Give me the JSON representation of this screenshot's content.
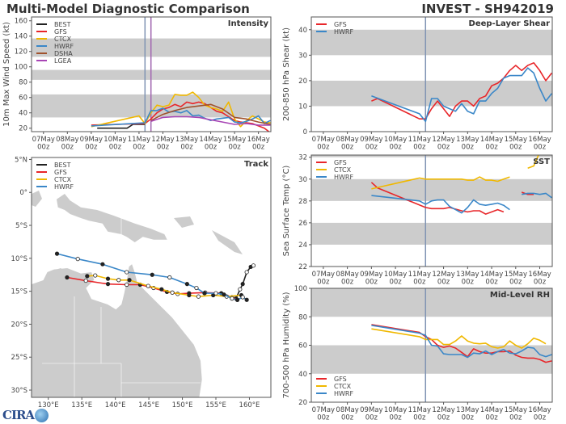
{
  "header": {
    "title": "Multi-Model Diagnostic Comparison",
    "storm_id": "INVEST - SH942019"
  },
  "logo": {
    "text": "CIRA"
  },
  "colors": {
    "BEST": "#222222",
    "GFS": "#e8262a",
    "CTCX": "#f0b800",
    "HWRF": "#3a87c8",
    "DSHA": "#a0522d",
    "LGEA": "#a845b5",
    "band": "#cccccc",
    "init_line": "#7f93b3",
    "lgea_line": "#a266b0"
  },
  "chart_data": [
    {
      "panel": "intensity",
      "type": "line",
      "title": "Intensity",
      "ylabel": "10m Max Wind Speed (kt)",
      "xlabel": "",
      "xlim": [
        6.5,
        16.52
      ],
      "ylim": [
        15.5,
        165
      ],
      "x_ticks": [
        7,
        8,
        9,
        10,
        11,
        12,
        13,
        14,
        15,
        16
      ],
      "x_tick_labels": [
        "07May 00z",
        "08May 00z",
        "09May 00z",
        "10May 00z",
        "11May 00z",
        "12May 00z",
        "13May 00z",
        "14May 00z",
        "15May 00z",
        "16May 00z"
      ],
      "y_ticks": [
        20,
        40,
        60,
        80,
        100,
        120,
        140,
        160
      ],
      "shaded_bands": [
        [
          34,
          64
        ],
        [
          83,
          96
        ],
        [
          113,
          137
        ]
      ],
      "vertical_lines": [
        {
          "x": 11.25,
          "color_key": "init_line"
        },
        {
          "x": 11.5,
          "color_key": "lgea_line"
        }
      ],
      "legend": "top-left",
      "series": [
        {
          "name": "BEST",
          "x": [
            9.25,
            9.5,
            10,
            10.5,
            10.75,
            11,
            11.25
          ],
          "y": [
            20,
            20,
            20,
            20,
            25,
            25,
            25
          ]
        },
        {
          "name": "GFS",
          "x": [
            9,
            11.25,
            11.5,
            11.75,
            12,
            12.25,
            12.5,
            12.75,
            13,
            13.25,
            13.5,
            13.75,
            14,
            14.25,
            14.5,
            14.75,
            15,
            15.25,
            15.5,
            15.75,
            16,
            16.25,
            16.5
          ],
          "y": [
            24,
            26,
            32,
            40,
            45,
            47,
            51,
            48,
            54,
            52,
            54,
            52,
            47,
            42,
            40,
            35,
            30,
            28,
            27,
            26,
            23,
            20,
            14
          ]
        },
        {
          "name": "CTCX",
          "x": [
            9,
            11,
            11.25,
            11.5,
            11.75,
            12,
            12.25,
            12.5,
            12.75,
            13,
            13.25,
            13.5,
            13.75,
            14,
            14.25,
            14.5,
            14.75,
            15,
            15.25,
            15.5,
            15.75,
            16,
            16.25,
            16.5
          ],
          "y": [
            22,
            36,
            26,
            40,
            50,
            48,
            50,
            64,
            63,
            63,
            67,
            60,
            50,
            47,
            45,
            42,
            54,
            32,
            22,
            30,
            36,
            32,
            28,
            27
          ]
        },
        {
          "name": "HWRF",
          "x": [
            9,
            11.25,
            11.5,
            11.75,
            12,
            12.25,
            12.5,
            12.75,
            13,
            13.25,
            13.5,
            13.75,
            14,
            14.25,
            14.5,
            14.75,
            15,
            15.25,
            15.5,
            15.75,
            16,
            16.25,
            16.5
          ],
          "y": [
            23,
            27,
            43,
            43,
            46,
            41,
            42,
            40,
            43,
            36,
            37,
            33,
            30,
            32,
            33,
            34,
            28,
            27,
            29,
            32,
            36,
            26,
            30
          ]
        },
        {
          "name": "DSHA",
          "x": [
            11.5,
            12,
            12.5,
            13,
            13.5,
            14,
            14.5,
            15,
            15.5,
            16,
            16.5
          ],
          "y": [
            30,
            38,
            43,
            47,
            49,
            51,
            45,
            34,
            32,
            28,
            25
          ]
        },
        {
          "name": "LGEA",
          "x": [
            11.5,
            12,
            12.5,
            13,
            13.5,
            14,
            14.5,
            15,
            15.5,
            16,
            16.5
          ],
          "y": [
            29,
            34,
            35,
            35,
            34,
            31,
            28,
            25,
            26,
            24,
            24
          ]
        }
      ]
    },
    {
      "panel": "shear",
      "type": "line",
      "title": "Deep-Layer Shear",
      "ylabel": "200-850 hPa Shear (kt)",
      "xlabel": "",
      "xlim": [
        6.5,
        16.52
      ],
      "ylim": [
        0,
        45
      ],
      "x_ticks": [
        7,
        8,
        9,
        10,
        11,
        12,
        13,
        14,
        15,
        16
      ],
      "x_tick_labels": [
        "07May 00z",
        "08May 00z",
        "09May 00z",
        "10May 00z",
        "11May 00z",
        "12May 00z",
        "13May 00z",
        "14May 00z",
        "15May 00z",
        "16May 00z"
      ],
      "y_ticks": [
        0,
        10,
        20,
        30,
        40
      ],
      "shaded_bands": [
        [
          10,
          20
        ],
        [
          30,
          40
        ]
      ],
      "vertical_lines": [
        {
          "x": 11.25,
          "color_key": "init_line"
        }
      ],
      "legend": "top-left",
      "series": [
        {
          "name": "GFS",
          "x": [
            9,
            9.25,
            11,
            11.25,
            11.5,
            11.75,
            12,
            12.25,
            12.5,
            12.75,
            13,
            13.25,
            13.5,
            13.75,
            14,
            14.25,
            14.5,
            14.75,
            15,
            15.25,
            15.5,
            15.75,
            16,
            16.25,
            16.5
          ],
          "y": [
            12,
            13,
            5,
            5,
            9,
            12,
            9,
            6,
            10,
            12,
            12,
            10,
            13,
            14,
            18,
            19,
            21,
            24,
            26,
            24,
            26,
            27,
            24,
            20,
            23
          ]
        },
        {
          "name": "HWRF",
          "x": [
            9,
            11,
            11.25,
            11.5,
            11.75,
            12,
            12.25,
            12.5,
            12.75,
            13,
            13.25,
            13.5,
            13.75,
            14,
            14.25,
            14.5,
            14.75,
            15,
            15.25,
            15.5,
            15.75,
            16,
            16.25,
            16.5
          ],
          "y": [
            14,
            7,
            4,
            13,
            13,
            10,
            9,
            8,
            11,
            8,
            7,
            12,
            12,
            15,
            17,
            21,
            22,
            22,
            22,
            25,
            23,
            17,
            12,
            15
          ]
        }
      ]
    },
    {
      "panel": "sst",
      "type": "line",
      "title": "SST",
      "ylabel": "Sea Surface Temp (°C)",
      "xlabel": "",
      "xlim": [
        6.5,
        16.52
      ],
      "ylim": [
        22,
        32.2
      ],
      "x_ticks": [
        7,
        8,
        9,
        10,
        11,
        12,
        13,
        14,
        15,
        16
      ],
      "x_tick_labels": [
        "07May 00z",
        "08May 00z",
        "09May 00z",
        "10May 00z",
        "11May 00z",
        "12May 00z",
        "13May 00z",
        "14May 00z",
        "15May 00z",
        "16May 00z"
      ],
      "y_ticks": [
        22,
        24,
        26,
        28,
        30,
        32
      ],
      "shaded_bands": [
        [
          24,
          26
        ],
        [
          28,
          30
        ],
        [
          32,
          34
        ]
      ],
      "vertical_lines": [
        {
          "x": 11.25,
          "color_key": "init_line"
        }
      ],
      "legend": "top-left",
      "series": [
        {
          "name": "GFS",
          "x": [
            9,
            9.25,
            11.25,
            11.5,
            12,
            12.25,
            12.75,
            13,
            13.25,
            13.5,
            13.75,
            14,
            14.25,
            14.5,
            15,
            15.25,
            15.5,
            15.75
          ],
          "y": [
            29.7,
            29.2,
            27.4,
            27.3,
            27.3,
            27.4,
            27.1,
            27,
            27.1,
            27.1,
            26.8,
            27,
            27.2,
            27,
            null,
            28.8,
            28.6,
            28.6
          ]
        },
        {
          "name": "CTCX",
          "x": [
            9,
            11,
            11.25,
            12,
            12.75,
            13,
            13.25,
            13.5,
            13.75,
            14,
            14.25,
            14.5,
            14.75,
            15,
            15.5,
            15.75,
            15.95
          ],
          "y": [
            29.1,
            30.1,
            30,
            30,
            30,
            29.9,
            29.9,
            30.2,
            29.9,
            29.9,
            29.8,
            30,
            30.2,
            null,
            31,
            31.2,
            32.2
          ]
        },
        {
          "name": "HWRF",
          "x": [
            9,
            11,
            11.25,
            11.5,
            11.75,
            12,
            12.25,
            12.5,
            12.75,
            13,
            13.25,
            13.5,
            13.75,
            14,
            14.25,
            14.5,
            14.75,
            15,
            15.25,
            15.5,
            15.75,
            16,
            16.25,
            16.5
          ],
          "y": [
            28.5,
            28,
            27.7,
            28,
            28.1,
            28.1,
            27.5,
            27.2,
            26.9,
            27.4,
            28.1,
            27.7,
            27.6,
            27.7,
            27.8,
            27.6,
            27.2,
            null,
            28.6,
            28.7,
            28.7,
            28.6,
            28.7,
            28.3
          ]
        }
      ]
    },
    {
      "panel": "rh",
      "type": "line",
      "title": "Mid-Level RH",
      "ylabel": "700-500 hPa Humidity (%)",
      "xlabel": "",
      "xlim": [
        6.5,
        16.52
      ],
      "ylim": [
        20,
        100
      ],
      "x_ticks": [
        7,
        8,
        9,
        10,
        11,
        12,
        13,
        14,
        15,
        16
      ],
      "x_tick_labels": [
        "07May 00z",
        "08May 00z",
        "09May 00z",
        "10May 00z",
        "11May 00z",
        "12May 00z",
        "13May 00z",
        "14May 00z",
        "15May 00z",
        "16May 00z"
      ],
      "y_ticks": [
        20,
        40,
        60,
        80,
        100
      ],
      "shaded_bands": [
        [
          40,
          60
        ],
        [
          80,
          100
        ]
      ],
      "vertical_lines": [
        {
          "x": 11.25,
          "color_key": "init_line"
        }
      ],
      "legend": "bottom-left",
      "series": [
        {
          "name": "GFS",
          "x": [
            9,
            11,
            11.25,
            11.5,
            11.75,
            12,
            12.25,
            12.5,
            12.75,
            13,
            13.25,
            13.5,
            13.75,
            14,
            14.25,
            14.5,
            14.75,
            15,
            15.25,
            15.5,
            15.75,
            16,
            16.25,
            16.5
          ],
          "y": [
            74.5,
            69,
            66,
            64,
            60,
            58.5,
            59.5,
            58,
            55,
            52,
            57.5,
            55.5,
            54.5,
            54.5,
            55.5,
            55.5,
            56,
            53,
            51.5,
            51,
            51,
            50,
            48,
            49
          ]
        },
        {
          "name": "CTCX",
          "x": [
            9,
            11,
            11.25,
            11.5,
            11.75,
            12,
            12.25,
            12.5,
            12.75,
            13,
            13.25,
            13.5,
            13.75,
            14,
            14.25,
            14.5,
            14.75,
            15,
            15.25,
            15.5,
            15.75,
            16,
            16.25
          ],
          "y": [
            71.5,
            66,
            64,
            64,
            64,
            60.5,
            60.5,
            63,
            66.5,
            63,
            61.5,
            61,
            61.5,
            59,
            58,
            59,
            63,
            60,
            58,
            61,
            65,
            63.5,
            61
          ]
        },
        {
          "name": "HWRF",
          "x": [
            9,
            11,
            11.25,
            11.5,
            11.75,
            12,
            12.25,
            12.75,
            13,
            13.25,
            13.5,
            13.75,
            14,
            14.25,
            14.5,
            14.75,
            15,
            15.25,
            15.5,
            15.75,
            16,
            16.25,
            16.5
          ],
          "y": [
            74,
            68.5,
            67,
            60,
            59.5,
            54,
            53.5,
            53.5,
            51.5,
            54.5,
            54,
            56,
            53.5,
            55.5,
            57,
            54.5,
            54,
            56,
            58.5,
            58,
            53.5,
            52,
            53.5
          ]
        }
      ]
    },
    {
      "panel": "track",
      "type": "line",
      "title": "Track",
      "xlabel": "",
      "ylabel": "",
      "xlim": [
        127.5,
        163.2
      ],
      "ylim": [
        -31.1,
        5.3
      ],
      "x_ticks": [
        130,
        135,
        140,
        145,
        150,
        155,
        160
      ],
      "x_tick_labels": [
        "130°E",
        "135°E",
        "140°E",
        "145°E",
        "150°E",
        "155°E",
        "160°E"
      ],
      "y_ticks": [
        5,
        0,
        -5,
        -10,
        -15,
        -20,
        -25,
        -30
      ],
      "y_tick_labels": [
        "5°N",
        "0°",
        "5°S",
        "10°S",
        "15°S",
        "20°S",
        "25°S",
        "30°S"
      ],
      "legend": "top-left",
      "series": [
        {
          "name": "BEST",
          "x": [
            158.0,
            158.6,
            159.0,
            159.6,
            160.2,
            160.6
          ],
          "y": [
            -16.1,
            -14.7,
            -13.9,
            -12.1,
            -11.3,
            -11.1
          ]
        },
        {
          "name": "GFS",
          "x": [
            132.8,
            135.6,
            138.9,
            141.7,
            143.7,
            145.7,
            147.7,
            149.3,
            151.0,
            153.4,
            155.8,
            157.4,
            158.2
          ],
          "y": [
            -12.9,
            -13.4,
            -13.9,
            -14.0,
            -14.0,
            -14.5,
            -15.1,
            -15.4,
            -15.3,
            -15.2,
            -15.3,
            -15.9,
            -16.3
          ]
        },
        {
          "name": "CTCX",
          "x": [
            135.8,
            137.0,
            138.9,
            140.5,
            142.1,
            144.9,
            146.9,
            148.5,
            151.0,
            152.4,
            154.6,
            156.6,
            158.8
          ],
          "y": [
            -12.7,
            -12.6,
            -13.1,
            -13.3,
            -13.3,
            -14.2,
            -14.7,
            -15.2,
            -15.6,
            -15.8,
            -15.6,
            -15.8,
            -15.6
          ]
        },
        {
          "name": "HWRF",
          "x": [
            131.3,
            134.4,
            138.1,
            141.7,
            145.5,
            148.1,
            150.7,
            152.1,
            153.3,
            155.0,
            156.2,
            157.4,
            158.2,
            159.0,
            159.6
          ],
          "y": [
            -9.3,
            -10.1,
            -10.9,
            -12.1,
            -12.5,
            -12.9,
            -13.9,
            -14.5,
            -15.3,
            -15.3,
            -15.5,
            -16.1,
            -16.3,
            -15.9,
            -16.3
          ]
        }
      ]
    }
  ]
}
